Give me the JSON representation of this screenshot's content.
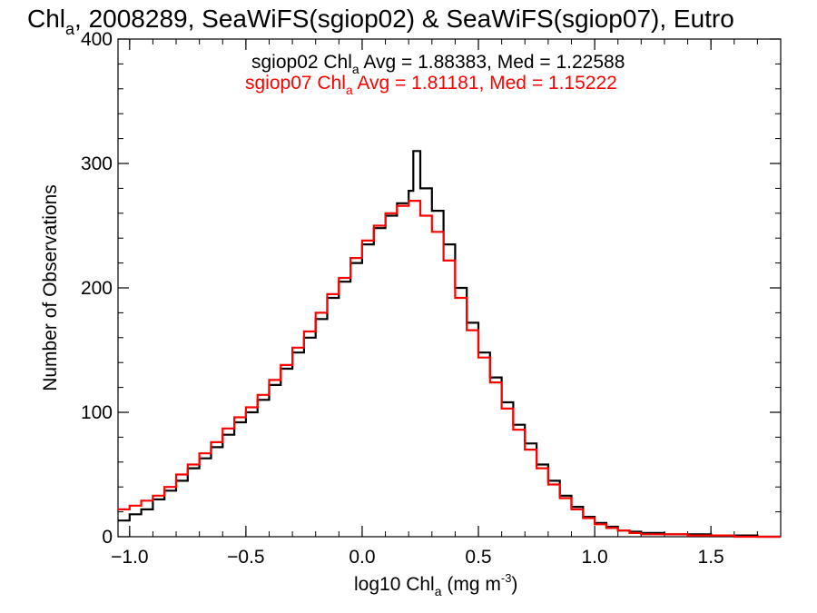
{
  "chart_data": {
    "type": "histogram-step",
    "title_parts": {
      "pre": "Chl",
      "sub": "a",
      "post": ", 2008289, SeaWiFS(sgiop02) & SeaWiFS(sgiop07), Eutro"
    },
    "xlabel_parts": {
      "pre": "log10 Chl",
      "sub": "a",
      "mid": " (mg m",
      "sup": "-3",
      "post": ")"
    },
    "ylabel": "Number of Observations",
    "xlim": [
      -1.05,
      1.8
    ],
    "ylim": [
      0,
      400
    ],
    "x_ticks": [
      {
        "value": -1.0,
        "label": "−1.0"
      },
      {
        "value": -0.5,
        "label": "−0.5"
      },
      {
        "value": 0.0,
        "label": "0.0"
      },
      {
        "value": 0.5,
        "label": "0.5"
      },
      {
        "value": 1.0,
        "label": "1.0"
      },
      {
        "value": 1.5,
        "label": "1.5"
      }
    ],
    "y_ticks": [
      {
        "value": 0,
        "label": "0"
      },
      {
        "value": 100,
        "label": "100"
      },
      {
        "value": 200,
        "label": "200"
      },
      {
        "value": 300,
        "label": "300"
      },
      {
        "value": 400,
        "label": "400"
      }
    ],
    "legend": [
      {
        "pre": "sgiop02 Chl",
        "sub": "a",
        "post": " Avg = 1.88383, Med = 1.22588",
        "color": "#000000"
      },
      {
        "pre": "sgiop07 Chl",
        "sub": "a",
        "post": " Avg = 1.81181, Med = 1.15222",
        "color": "#ff0000"
      }
    ],
    "series": [
      {
        "color": "#000000",
        "points": [
          [
            -1.05,
            13
          ],
          [
            -1.0,
            18
          ],
          [
            -0.95,
            22
          ],
          [
            -0.9,
            30
          ],
          [
            -0.85,
            37
          ],
          [
            -0.8,
            45
          ],
          [
            -0.75,
            55
          ],
          [
            -0.7,
            63
          ],
          [
            -0.65,
            72
          ],
          [
            -0.6,
            82
          ],
          [
            -0.55,
            92
          ],
          [
            -0.5,
            100
          ],
          [
            -0.45,
            110
          ],
          [
            -0.4,
            122
          ],
          [
            -0.35,
            135
          ],
          [
            -0.3,
            148
          ],
          [
            -0.25,
            160
          ],
          [
            -0.2,
            175
          ],
          [
            -0.15,
            192
          ],
          [
            -0.1,
            205
          ],
          [
            -0.05,
            220
          ],
          [
            0.0,
            235
          ],
          [
            0.05,
            248
          ],
          [
            0.1,
            258
          ],
          [
            0.15,
            268
          ],
          [
            0.2,
            278
          ],
          [
            0.22,
            310
          ],
          [
            0.25,
            280
          ],
          [
            0.3,
            262
          ],
          [
            0.35,
            235
          ],
          [
            0.4,
            200
          ],
          [
            0.45,
            172
          ],
          [
            0.5,
            148
          ],
          [
            0.55,
            128
          ],
          [
            0.6,
            108
          ],
          [
            0.65,
            90
          ],
          [
            0.7,
            75
          ],
          [
            0.75,
            58
          ],
          [
            0.8,
            45
          ],
          [
            0.85,
            33
          ],
          [
            0.9,
            24
          ],
          [
            0.95,
            16
          ],
          [
            1.0,
            11
          ],
          [
            1.05,
            8
          ],
          [
            1.1,
            5
          ],
          [
            1.15,
            4
          ],
          [
            1.2,
            3
          ],
          [
            1.3,
            2
          ],
          [
            1.4,
            2
          ],
          [
            1.5,
            1
          ],
          [
            1.6,
            1
          ],
          [
            1.7,
            0
          ],
          [
            1.8,
            0
          ]
        ]
      },
      {
        "color": "#ff0000",
        "points": [
          [
            -1.05,
            22
          ],
          [
            -1.0,
            25
          ],
          [
            -0.95,
            29
          ],
          [
            -0.9,
            33
          ],
          [
            -0.85,
            40
          ],
          [
            -0.8,
            50
          ],
          [
            -0.75,
            58
          ],
          [
            -0.7,
            67
          ],
          [
            -0.65,
            76
          ],
          [
            -0.6,
            87
          ],
          [
            -0.55,
            96
          ],
          [
            -0.5,
            104
          ],
          [
            -0.45,
            114
          ],
          [
            -0.4,
            126
          ],
          [
            -0.35,
            138
          ],
          [
            -0.3,
            152
          ],
          [
            -0.25,
            165
          ],
          [
            -0.2,
            180
          ],
          [
            -0.15,
            195
          ],
          [
            -0.1,
            208
          ],
          [
            -0.05,
            224
          ],
          [
            0.0,
            238
          ],
          [
            0.05,
            250
          ],
          [
            0.1,
            260
          ],
          [
            0.15,
            266
          ],
          [
            0.2,
            270
          ],
          [
            0.25,
            258
          ],
          [
            0.3,
            245
          ],
          [
            0.35,
            222
          ],
          [
            0.4,
            192
          ],
          [
            0.45,
            166
          ],
          [
            0.5,
            144
          ],
          [
            0.55,
            124
          ],
          [
            0.6,
            103
          ],
          [
            0.65,
            86
          ],
          [
            0.7,
            70
          ],
          [
            0.75,
            55
          ],
          [
            0.8,
            42
          ],
          [
            0.85,
            31
          ],
          [
            0.9,
            22
          ],
          [
            0.95,
            15
          ],
          [
            1.0,
            10
          ],
          [
            1.05,
            7
          ],
          [
            1.1,
            5
          ],
          [
            1.15,
            3
          ],
          [
            1.2,
            2
          ],
          [
            1.3,
            2
          ],
          [
            1.4,
            1
          ],
          [
            1.5,
            1
          ],
          [
            1.6,
            0
          ],
          [
            1.7,
            0
          ],
          [
            1.8,
            0
          ]
        ]
      }
    ]
  }
}
